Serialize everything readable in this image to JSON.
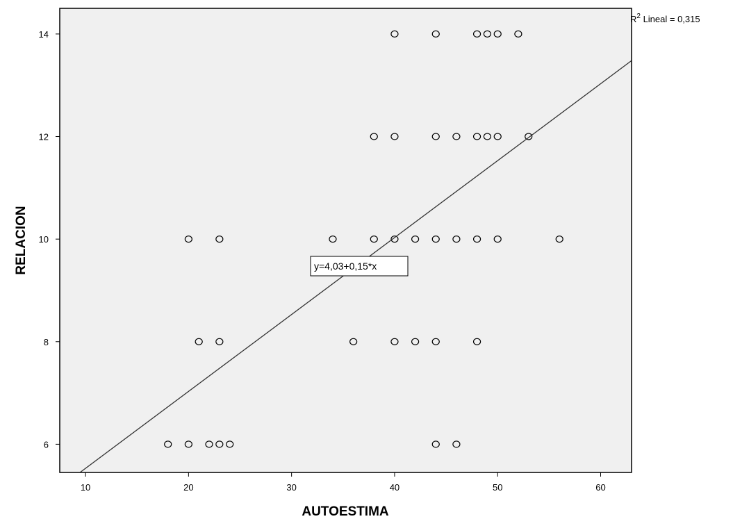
{
  "chart_data": {
    "type": "scatter",
    "xlabel": "AUTOESTIMA",
    "ylabel": "RELACION",
    "xlim": [
      7.5,
      63
    ],
    "ylim": [
      5.45,
      14.5
    ],
    "x_ticks": [
      10,
      20,
      30,
      40,
      50,
      60
    ],
    "y_ticks": [
      6,
      8,
      10,
      12,
      14
    ],
    "grid": false,
    "plot_background": "#f0f0f0",
    "marker_color": "#000000",
    "points": [
      {
        "x": 40,
        "y": 14
      },
      {
        "x": 44,
        "y": 14
      },
      {
        "x": 48,
        "y": 14
      },
      {
        "x": 49,
        "y": 14
      },
      {
        "x": 50,
        "y": 14
      },
      {
        "x": 52,
        "y": 14
      },
      {
        "x": 38,
        "y": 12
      },
      {
        "x": 40,
        "y": 12
      },
      {
        "x": 44,
        "y": 12
      },
      {
        "x": 46,
        "y": 12
      },
      {
        "x": 48,
        "y": 12
      },
      {
        "x": 49,
        "y": 12
      },
      {
        "x": 50,
        "y": 12
      },
      {
        "x": 53,
        "y": 12
      },
      {
        "x": 20,
        "y": 10
      },
      {
        "x": 23,
        "y": 10
      },
      {
        "x": 34,
        "y": 10
      },
      {
        "x": 38,
        "y": 10
      },
      {
        "x": 40,
        "y": 10
      },
      {
        "x": 42,
        "y": 10
      },
      {
        "x": 44,
        "y": 10
      },
      {
        "x": 46,
        "y": 10
      },
      {
        "x": 48,
        "y": 10
      },
      {
        "x": 50,
        "y": 10
      },
      {
        "x": 56,
        "y": 10
      },
      {
        "x": 21,
        "y": 8
      },
      {
        "x": 23,
        "y": 8
      },
      {
        "x": 36,
        "y": 8
      },
      {
        "x": 40,
        "y": 8
      },
      {
        "x": 42,
        "y": 8
      },
      {
        "x": 44,
        "y": 8
      },
      {
        "x": 48,
        "y": 8
      },
      {
        "x": 18,
        "y": 6
      },
      {
        "x": 20,
        "y": 6
      },
      {
        "x": 22,
        "y": 6
      },
      {
        "x": 23,
        "y": 6
      },
      {
        "x": 24,
        "y": 6
      },
      {
        "x": 44,
        "y": 6
      },
      {
        "x": 46,
        "y": 6
      }
    ],
    "fit_line": {
      "intercept": 4.03,
      "slope": 0.15,
      "equation_label": "y=4,03+0,15*x",
      "r2_prefix": "R",
      "r2_superscript": "2",
      "r2_suffix": " Lineal = 0,315"
    }
  }
}
